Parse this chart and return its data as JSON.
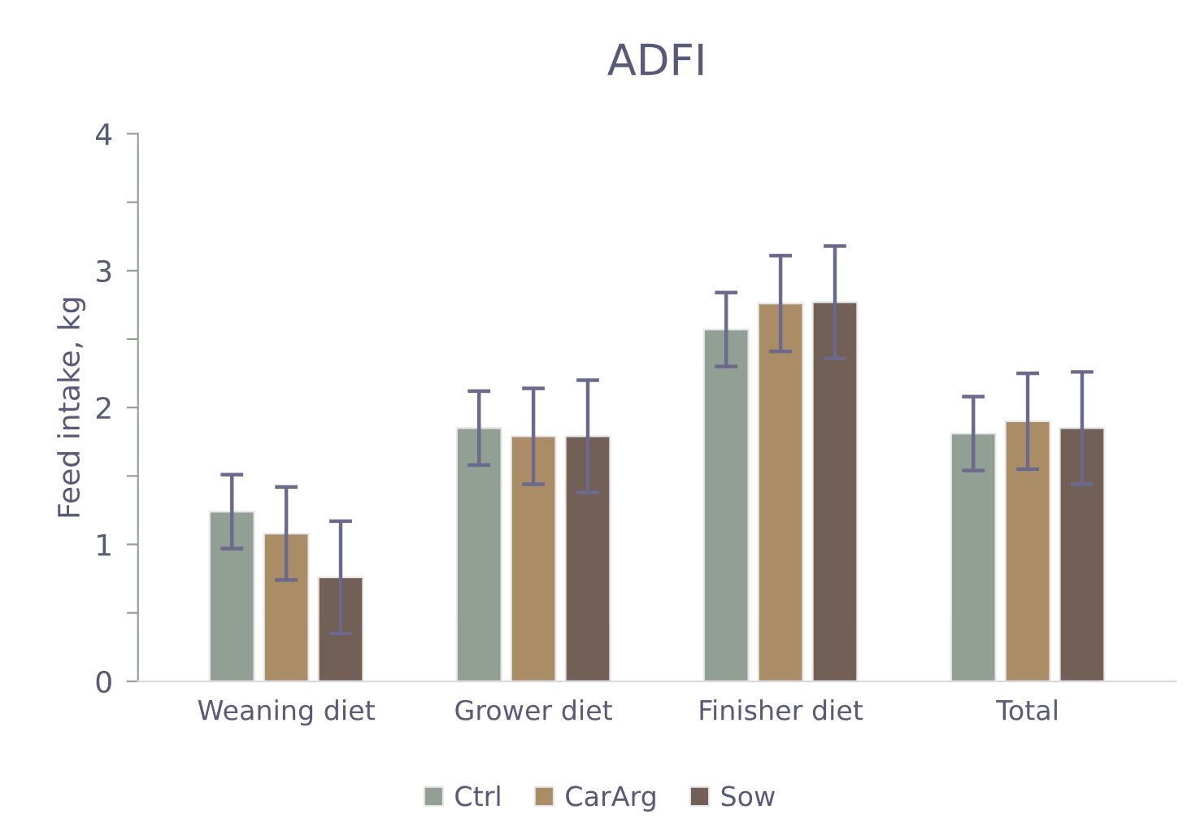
{
  "chart_data": {
    "type": "bar",
    "title": "ADFI",
    "ylabel": "Feed intake, kg",
    "categories": [
      "Weaning diet",
      "Grower diet",
      "Finisher diet",
      "Total"
    ],
    "series": [
      {
        "name": "Ctrl",
        "color": "#929f94",
        "values": [
          1.24,
          1.85,
          2.57,
          1.81
        ],
        "errors": [
          0.27,
          0.27,
          0.27,
          0.27
        ]
      },
      {
        "name": "CarArg",
        "color": "#aa8d66",
        "values": [
          1.08,
          1.79,
          2.76,
          1.9
        ],
        "errors": [
          0.34,
          0.35,
          0.35,
          0.35
        ]
      },
      {
        "name": "Sow",
        "color": "#725f55",
        "values": [
          0.76,
          1.79,
          2.77,
          1.85
        ],
        "errors": [
          0.41,
          0.41,
          0.41,
          0.41
        ]
      }
    ],
    "ylim": [
      0,
      4
    ],
    "yticks": [
      0,
      {
        "value": 0.5,
        "label": null
      },
      1,
      {
        "value": 1.5,
        "label": null
      },
      2,
      {
        "value": 2.5,
        "label": null
      },
      3,
      {
        "value": 3.5,
        "label": null
      },
      4
    ],
    "grid": false,
    "legend": "bottom"
  }
}
